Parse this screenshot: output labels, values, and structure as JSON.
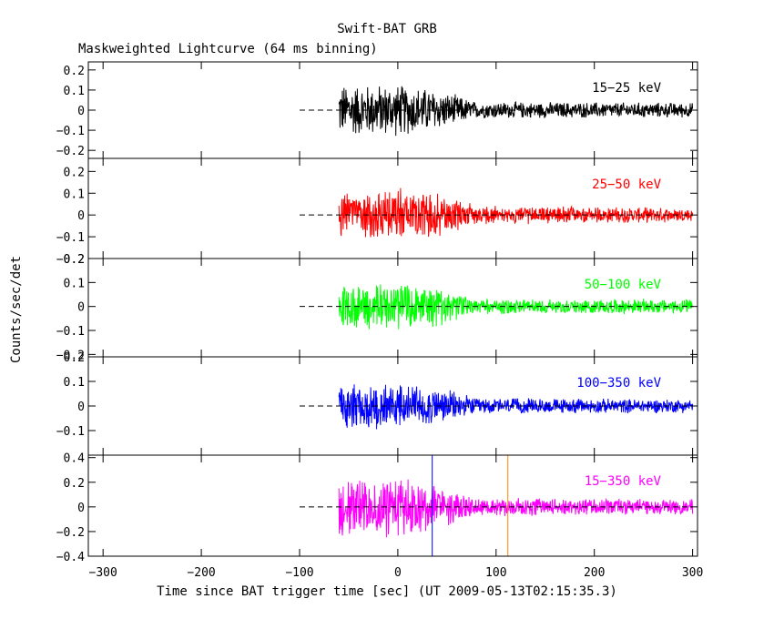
{
  "chart_data": {
    "type": "line",
    "title": "Swift-BAT GRB",
    "subtitle": "Maskweighted Lightcurve (64 ms binning)",
    "xlabel": "Time since BAT trigger time [sec] (UT 2009-05-13T02:15:35.3)",
    "ylabel": "Counts/sec/det",
    "xlim": [
      -315,
      305
    ],
    "x_ticks": [
      -300,
      -200,
      -100,
      0,
      100,
      200,
      300
    ],
    "x_tick_labels": [
      "−300",
      "−200",
      "−100",
      "0",
      "100",
      "200",
      "300"
    ],
    "data_range": [
      -60,
      300
    ],
    "zero_line_range": [
      -100,
      300
    ],
    "vertical_markers": [
      {
        "x": 35,
        "color": "#0000ff"
      },
      {
        "x": 112,
        "color": "#ff8000"
      }
    ],
    "panels": [
      {
        "band": "15−25 keV",
        "color": "#000000",
        "ylim": [
          -0.24,
          0.24
        ],
        "y_ticks": [
          -0.2,
          -0.1,
          0,
          0.1,
          0.2
        ],
        "y_tick_labels": [
          "−0.2",
          "−0.1",
          "0",
          "0.1",
          "0.2"
        ],
        "envelope": {
          "x": [
            -60,
            0,
            30,
            60,
            80,
            300
          ],
          "amp": [
            0.14,
            0.14,
            0.12,
            0.08,
            0.045,
            0.04
          ]
        }
      },
      {
        "band": "25−50 keV",
        "color": "#ff0000",
        "ylim": [
          -0.2,
          0.26
        ],
        "y_ticks": [
          -0.2,
          -0.1,
          0,
          0.1,
          0.2
        ],
        "y_tick_labels": [
          "−0.2",
          "−0.1",
          "0",
          "0.1",
          "0.2"
        ],
        "envelope": {
          "x": [
            -60,
            0,
            30,
            60,
            80,
            300
          ],
          "amp": [
            0.11,
            0.13,
            0.12,
            0.08,
            0.045,
            0.035
          ]
        }
      },
      {
        "band": "50−100 keV",
        "color": "#00ff00",
        "ylim": [
          -0.21,
          0.2
        ],
        "y_ticks": [
          -0.2,
          -0.1,
          0,
          0.1,
          0.2
        ],
        "y_tick_labels": [
          "−0.2",
          "−0.1",
          "0",
          "0.1",
          "0.2"
        ],
        "envelope": {
          "x": [
            -60,
            0,
            30,
            60,
            80,
            300
          ],
          "amp": [
            0.1,
            0.11,
            0.1,
            0.06,
            0.035,
            0.032
          ]
        }
      },
      {
        "band": "100−350 keV",
        "color": "#0000ff",
        "ylim": [
          -0.2,
          0.2
        ],
        "y_ticks": [
          -0.1,
          0,
          0.1,
          0.2
        ],
        "y_tick_labels": [
          "−0.1",
          "0",
          "0.1",
          "0.2"
        ],
        "envelope": {
          "x": [
            -60,
            0,
            30,
            60,
            80,
            300
          ],
          "amp": [
            0.1,
            0.1,
            0.09,
            0.06,
            0.035,
            0.03
          ]
        }
      },
      {
        "band": "15−350 keV",
        "color": "#ff00ff",
        "ylim": [
          -0.4,
          0.42
        ],
        "y_ticks": [
          -0.4,
          -0.2,
          0,
          0.2,
          0.4
        ],
        "y_tick_labels": [
          "−0.4",
          "−0.2",
          "0",
          "0.2",
          "0.4"
        ],
        "envelope": {
          "x": [
            -60,
            0,
            30,
            60,
            80,
            300
          ],
          "amp": [
            0.25,
            0.26,
            0.22,
            0.14,
            0.08,
            0.07
          ]
        }
      }
    ]
  }
}
